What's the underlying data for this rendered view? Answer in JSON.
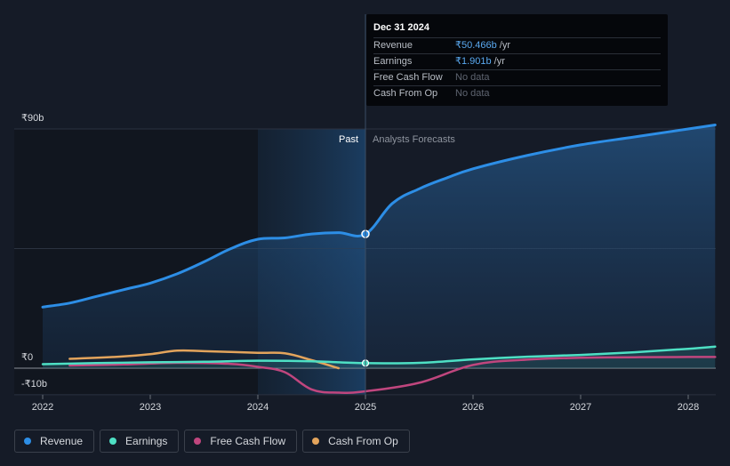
{
  "tooltip": {
    "date": "Dec 31 2024",
    "rows": [
      {
        "label": "Revenue",
        "value": "₹50.466b",
        "unit": "/yr"
      },
      {
        "label": "Earnings",
        "value": "₹1.901b",
        "unit": "/yr"
      },
      {
        "label": "Free Cash Flow",
        "value": "No data",
        "unit": ""
      },
      {
        "label": "Cash From Op",
        "value": "No data",
        "unit": ""
      }
    ]
  },
  "labels": {
    "past": "Past",
    "forecast": "Analysts Forecasts"
  },
  "colors": {
    "revenue": "#2d8ee6",
    "earnings": "#4ee0c4",
    "free_cash_flow": "#c0467e",
    "cash_from_op": "#e3a45c",
    "background": "#151b27"
  },
  "chart_data": {
    "type": "line",
    "title": "",
    "xlabel": "",
    "ylabel": "",
    "x_ticks": [
      "2022",
      "2023",
      "2024",
      "2025",
      "2026",
      "2027",
      "2028"
    ],
    "y_ticks": [
      "₹90b",
      "₹0",
      "-₹10b"
    ],
    "ylim": [
      -10,
      90
    ],
    "xlim": [
      2022.0,
      2028.25
    ],
    "past_until": 2025.0,
    "highlight_start": 2024.0,
    "series": [
      {
        "name": "Revenue",
        "key": "revenue",
        "x": [
          2022.0,
          2022.25,
          2022.5,
          2022.75,
          2023.0,
          2023.25,
          2023.5,
          2023.75,
          2024.0,
          2024.25,
          2024.5,
          2024.75,
          2025.0,
          2025.25,
          2025.5,
          2025.75,
          2026.0,
          2026.5,
          2027.0,
          2027.5,
          2028.0,
          2028.25
        ],
        "values": [
          23,
          24.5,
          27,
          29.5,
          32,
          35.5,
          40,
          45,
          48.5,
          49,
          50.5,
          51,
          50.47,
          62,
          67.5,
          71.5,
          75,
          80,
          84,
          87,
          90,
          91.5
        ]
      },
      {
        "name": "Earnings",
        "key": "earnings",
        "x": [
          2022.0,
          2022.5,
          2023.0,
          2023.5,
          2024.0,
          2024.5,
          2025.0,
          2025.5,
          2026.0,
          2026.5,
          2027.0,
          2027.5,
          2028.0,
          2028.25
        ],
        "values": [
          1.5,
          1.9,
          2.2,
          2.4,
          2.8,
          2.6,
          1.9,
          2.0,
          3.3,
          4.3,
          5.0,
          6.0,
          7.3,
          8.1
        ]
      },
      {
        "name": "Free Cash Flow",
        "key": "free_cash_flow",
        "x": [
          2022.25,
          2022.75,
          2023.25,
          2023.75,
          2024.0,
          2024.25,
          2024.5,
          2024.75,
          2025.0,
          2025.5,
          2026.0,
          2026.5,
          2027.0,
          2027.5,
          2028.0,
          2028.25
        ],
        "values": [
          1.0,
          1.4,
          2.0,
          1.6,
          0.5,
          -1.5,
          -8.0,
          -9.2,
          -8.7,
          -5.5,
          1.2,
          3.2,
          3.9,
          4.1,
          4.2,
          4.2
        ]
      },
      {
        "name": "Cash From Op",
        "key": "cash_from_op",
        "x": [
          2022.25,
          2022.75,
          2023.0,
          2023.25,
          2023.5,
          2024.0,
          2024.25,
          2024.5,
          2024.75
        ],
        "values": [
          3.5,
          4.4,
          5.3,
          6.6,
          6.4,
          5.8,
          5.6,
          3.0,
          0.0
        ]
      }
    ]
  },
  "legend": [
    {
      "label": "Revenue",
      "key": "revenue"
    },
    {
      "label": "Earnings",
      "key": "earnings"
    },
    {
      "label": "Free Cash Flow",
      "key": "free_cash_flow"
    },
    {
      "label": "Cash From Op",
      "key": "cash_from_op"
    }
  ]
}
